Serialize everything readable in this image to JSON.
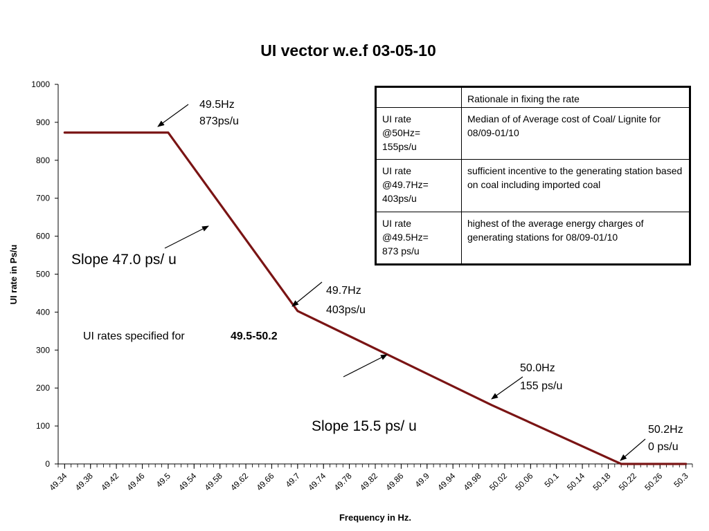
{
  "chart_data": {
    "type": "line",
    "title": "UI vector w.e.f 03-05-10",
    "xlabel": "Frequency in Hz.",
    "ylabel": "UI rate in Ps/u",
    "ylim": [
      0,
      1000
    ],
    "yticks": [
      0,
      100,
      200,
      300,
      400,
      500,
      600,
      700,
      800,
      900,
      1000
    ],
    "xticks": [
      "49.34",
      "49.38",
      "49.42",
      "49.46",
      "49.5",
      "49.54",
      "49.58",
      "49.62",
      "49.66",
      "49.7",
      "49.74",
      "49.78",
      "49.82",
      "49.86",
      "49.9",
      "49.94",
      "49.98",
      "50.02",
      "50.06",
      "50.1",
      "50.14",
      "50.18",
      "50.22",
      "50.26",
      "50.3"
    ],
    "xlim": [
      49.33,
      50.31
    ],
    "grid": false,
    "series": [
      {
        "color": "#7a1414",
        "x": [
          49.34,
          49.5,
          49.7,
          50.0,
          50.2,
          50.3
        ],
        "y": [
          873,
          873,
          403,
          155,
          0,
          0
        ]
      }
    ]
  },
  "annotations": {
    "p495_freq": "49.5Hz",
    "p495_rate": "873ps/u",
    "p497_freq": "49.7Hz",
    "p497_rate": "403ps/u",
    "p500_freq": "50.0Hz",
    "p500_rate": "155 ps/u",
    "p502_freq": "50.2Hz",
    "p502_rate": "0 ps/u",
    "slope1": "Slope 47.0 ps/ u",
    "slope2": "Slope 15.5 ps/ u",
    "range_text": "UI rates specified for",
    "range_value": "49.5-50.2"
  },
  "table": {
    "header": [
      "",
      "Rationale in fixing the rate"
    ],
    "rows": [
      {
        "label": [
          "UI rate",
          "@50Hz=",
          "155ps/u"
        ],
        "text": "Median of  of Average cost of Coal/ Lignite for 08/09-01/10"
      },
      {
        "label": [
          "UI rate",
          "@49.7Hz=",
          "403ps/u"
        ],
        "text": "sufficient incentive to the generating station based on coal including imported coal"
      },
      {
        "label": [
          "UI rate",
          "@49.5Hz=",
          "873 ps/u"
        ],
        "text": "highest of the average energy charges of generating stations for 08/09-01/10"
      }
    ]
  }
}
